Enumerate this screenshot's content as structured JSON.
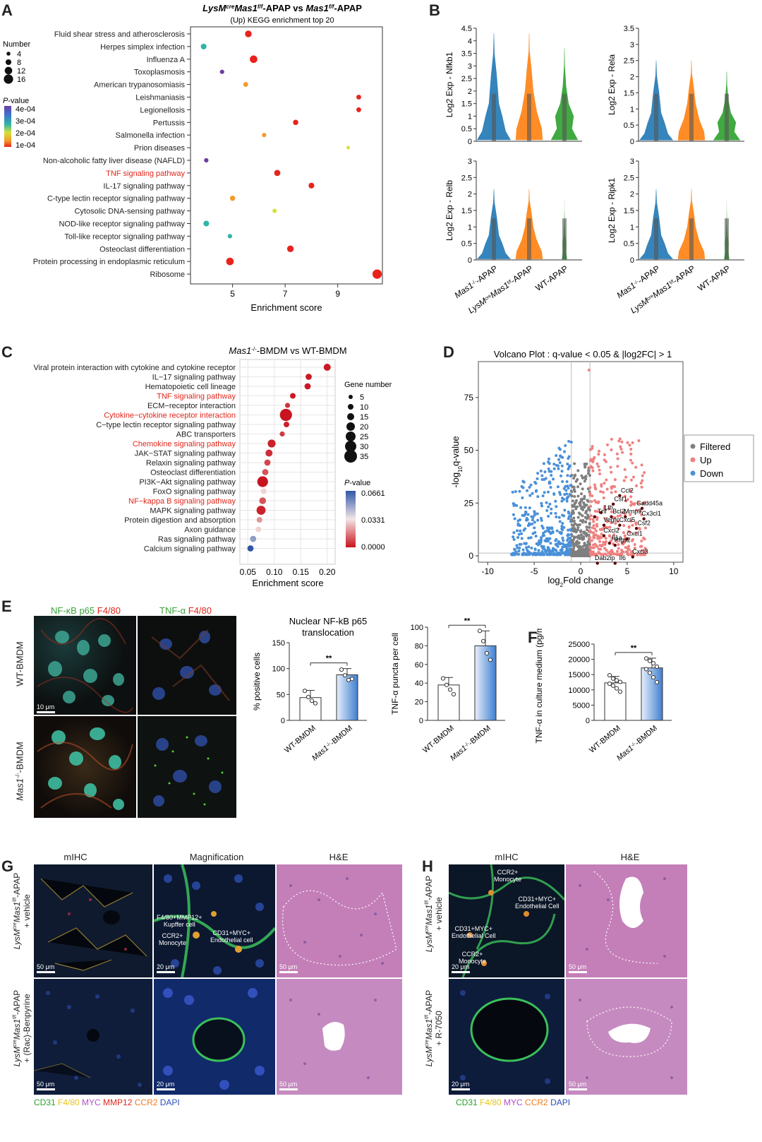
{
  "colors": {
    "violin_mas1": "#1f77b4",
    "violin_lysm": "#ff7f0e",
    "violin_wt": "#2ca02c",
    "highlight_red": "#e0261b",
    "volcano_up": "#f08080",
    "volcano_down": "#4a90d9",
    "volcano_filtered": "#7f7f7f",
    "bar_blue": "#3f7fd0"
  },
  "panels": {
    "a": {
      "letter": "A",
      "title": "LysMcreMas1f/f-APAP vs Mas1f/f-APAP",
      "title_parts": [
        "LysM",
        "cre",
        "Mas1",
        "f/f",
        "-APAP vs ",
        "Mas1",
        "f/f",
        "-APAP"
      ],
      "subtitle": "(Up) KEGG enrichment top 20",
      "legend_number_title": "Number",
      "legend_number": [
        "4",
        "8",
        "12",
        "16"
      ],
      "legend_p_title": "P-value",
      "legend_p_title_parts": [
        "P",
        "-value"
      ],
      "legend_p": [
        "4e-04",
        "3e-04",
        "2e-04",
        "1e-04"
      ]
    },
    "b": {
      "letter": "B"
    },
    "c": {
      "letter": "C",
      "title": "Mas1-/--BMDM vs WT-BMDM",
      "title_parts": [
        "Mas1",
        "-/-",
        "-BMDM vs WT-BMDM"
      ],
      "legend_gene_title": "Gene number",
      "legend_gene": [
        "5",
        "10",
        "15",
        "20",
        "25",
        "30",
        "35"
      ],
      "legend_p_title": "P-value",
      "legend_p_title_parts": [
        "P",
        "-value"
      ],
      "legend_p": [
        "0.0661",
        "0.0331",
        "0.0000"
      ]
    },
    "d": {
      "letter": "D",
      "legend": [
        "Filtered",
        "Up",
        "Down"
      ]
    },
    "e": {
      "letter": "E",
      "stain_left": [
        "NF-κB p65",
        " F4/80"
      ],
      "stain_right": [
        "TNF-α",
        " F4/80"
      ],
      "row_top": "WT-BMDM",
      "row_bottom": "Mas1-/--BMDM",
      "row_bottom_parts": [
        "Mas1",
        "-/-",
        "-BMDM"
      ],
      "scale": "10 μm"
    },
    "f": {
      "letter": "F"
    },
    "g": {
      "letter": "G",
      "col_titles": [
        "mIHC",
        "Magnification",
        "H&E"
      ],
      "row_top": [
        "LysMcreMas1f/f-APAP",
        "+ vehicle"
      ],
      "row_top_parts": [
        "LysM",
        "cre",
        "Mas1",
        "f/f",
        "-APAP"
      ],
      "row_bottom": [
        "LysMcreMas1f/f-APAP",
        "+ (Rac)-Benpyrine"
      ],
      "row_bottom_parts": [
        "LysM",
        "cre",
        "Mas1",
        "f/f",
        "-APAP"
      ],
      "callouts": [
        "F4/80+MMP12+",
        "Kupffer cell",
        "CCR2+",
        "Monocyte",
        "CD31+MYC+",
        "Endothelial cell"
      ],
      "scales": [
        "50 μm",
        "20 μm",
        "50 μm"
      ],
      "stains": [
        [
          "CD31",
          "#2ca02c"
        ],
        [
          " F4/80",
          "#e6c619"
        ],
        [
          " MYC",
          "#b54ccf"
        ],
        [
          " MMP12",
          "#e0261b"
        ],
        [
          " CCR2",
          "#f27b1d"
        ],
        [
          " DAPI",
          "#2b4fb8"
        ]
      ]
    },
    "h": {
      "letter": "H",
      "col_titles": [
        "mIHC",
        "H&E"
      ],
      "row_top": [
        "LysMcreMas1f/f-APAP",
        "+ vehicle"
      ],
      "row_top_parts": [
        "LysM",
        "cre",
        "Mas1",
        "f/f",
        "-APAP"
      ],
      "row_bottom": [
        "LysMcreMas1f/f-APAP",
        "+ R-7050"
      ],
      "row_bottom_parts": [
        "LysM",
        "cre",
        "Mas1",
        "f/f",
        "-APAP"
      ],
      "callouts": [
        "CCR2+",
        "Monocyte",
        "CD31+MYC+",
        "Endothelial Cell",
        "CD31+MYC+",
        "Endothelial Cell",
        "CCR2+",
        "Monocyte"
      ],
      "scales": [
        "20 μm",
        "50 μm"
      ],
      "stains": [
        [
          "CD31",
          "#2ca02c"
        ],
        [
          " F4/80",
          "#e6c619"
        ],
        [
          " MYC",
          "#b54ccf"
        ],
        [
          " CCR2",
          "#f27b1d"
        ],
        [
          " DAPI",
          "#2b4fb8"
        ]
      ]
    }
  },
  "chart_data": [
    {
      "id": "kegg_top20",
      "type": "scatter",
      "title": "LysMcreMas1f/f-APAP vs Mas1f/f-APAP",
      "subtitle": "(Up) KEGG enrichment top 20",
      "xlabel": "Enrichment score",
      "ylabel": "",
      "xlim": [
        3.4,
        10.7
      ],
      "xticks": [
        "5",
        "7",
        "9"
      ],
      "categories": [
        "Fluid shear stress and atherosclerosis",
        "Herpes simplex infection",
        "Influenza A",
        "Toxoplasmosis",
        "American trypanosomiasis",
        "Leishmaniasis",
        "Legionellosis",
        "Pertussis",
        "Salmonella infection",
        "Prion diseases",
        "Non-alcoholic fatty liver disease (NAFLD)",
        "TNF signaling pathway",
        "IL-17 signaling pathway",
        "C-type lectin receptor signaling pathway",
        "Cytosolic DNA-sensing pathway",
        "NOD-like receptor signaling pathway",
        "Toll-like receptor signaling pathway",
        "Osteoclast differentiation",
        "Protein processing in endoplasmic reticulum",
        "Ribosome"
      ],
      "highlight": [
        "TNF signaling pathway"
      ],
      "x": [
        5.6,
        3.9,
        5.8,
        4.6,
        5.5,
        9.8,
        9.8,
        7.4,
        6.2,
        9.4,
        4.0,
        6.7,
        8.0,
        5.0,
        6.6,
        4.0,
        4.9,
        7.2,
        4.9,
        10.5
      ],
      "number": [
        10,
        8,
        12,
        5,
        6,
        6,
        6,
        7,
        5,
        3,
        5,
        9,
        8,
        7,
        5,
        8,
        5,
        10,
        12,
        16
      ],
      "pvalue": [
        0.00012,
        0.00025,
        0.0001,
        0.00042,
        0.00015,
        0.00011,
        0.00011,
        0.0001,
        0.00016,
        0.00019,
        0.0004,
        0.0001,
        0.0001,
        0.00018,
        0.0002,
        0.00027,
        0.00026,
        0.0001,
        0.0001,
        0.0001
      ],
      "legend": "right"
    },
    {
      "id": "violins",
      "type": "violin",
      "groups": [
        "Mas1-/--APAP",
        "LysMcreMas1f/f-APAP",
        "WT-APAP"
      ],
      "panels": [
        {
          "ylabel": "Log2 Exp - Nfkb1",
          "ylim": [
            0,
            4.5
          ],
          "yticks": [
            "0",
            "0.5",
            "1",
            "1.5",
            "2",
            "2.5",
            "3",
            "3.5",
            "4",
            "4.5"
          ]
        },
        {
          "ylabel": "Log2 Exp - Rela",
          "ylim": [
            0,
            3.5
          ],
          "yticks": [
            "0",
            "0.5",
            "1",
            "1.5",
            "2",
            "2.5",
            "3",
            "3.5"
          ]
        },
        {
          "ylabel": "Log2 Exp - Relb",
          "ylim": [
            0,
            3
          ],
          "yticks": [
            "0",
            "0.5",
            "1",
            "1.5",
            "2",
            "2.5",
            "3"
          ]
        },
        {
          "ylabel": "Log2 Exp - Ripk1",
          "ylim": [
            0,
            3
          ],
          "yticks": [
            "0",
            "0.5",
            "1",
            "1.5",
            "2",
            "2.5",
            "3"
          ]
        }
      ]
    },
    {
      "id": "bmdm_kegg",
      "type": "scatter",
      "title": "Mas1-/--BMDM vs WT-BMDM",
      "xlabel": "Enrichment score",
      "xlim": [
        0.035,
        0.215
      ],
      "xticks": [
        "0.05",
        "0.10",
        "0.15",
        "0.20"
      ],
      "categories": [
        "Viral protein interaction with cytokine and cytokine receptor",
        "IL−17 signaling pathway",
        "Hematopoietic cell lineage",
        "TNF signaling pathway",
        "ECM−receptor interaction",
        "Cytokine−cytokine receptor interaction",
        "C−type lectin receptor signaling pathway",
        "ABC transporters",
        "Chemokine signaling pathway",
        "JAK−STAT signaling pathway",
        "Relaxin signaling pathway",
        "Osteoclast differentiation",
        "PI3K−Akt signaling pathway",
        "FoxO signaling pathway",
        "NF−kappa B signaling pathway",
        "MAPK signaling pathway",
        "Protein digestion and absorption",
        "Axon guidance",
        "Ras signaling pathway",
        "Calcium signaling pathway"
      ],
      "highlight": [
        "TNF signaling pathway",
        "Cytokine−cytokine receptor interaction",
        "Chemokine signaling pathway",
        "NF−kappa B signaling pathway"
      ],
      "x": [
        0.2,
        0.165,
        0.163,
        0.135,
        0.125,
        0.122,
        0.123,
        0.115,
        0.095,
        0.09,
        0.087,
        0.083,
        0.078,
        0.08,
        0.078,
        0.075,
        0.072,
        0.07,
        0.06,
        0.055
      ],
      "gene_number": [
        15,
        12,
        12,
        10,
        8,
        33,
        10,
        8,
        18,
        15,
        12,
        12,
        28,
        10,
        14,
        22,
        10,
        10,
        12,
        12
      ],
      "pvalue": [
        0.001,
        0.001,
        0.001,
        0.001,
        0.005,
        0.0,
        0.002,
        0.006,
        0.002,
        0.004,
        0.008,
        0.01,
        0.0,
        0.03,
        0.01,
        0.002,
        0.02,
        0.03,
        0.05,
        0.0661
      ],
      "legend": "right"
    },
    {
      "id": "volcano",
      "type": "scatter",
      "title": "Volcano Plot : q-value < 0.05 & |log2FC| > 1",
      "xlabel": "log2Fold change",
      "ylabel": "-log10q-value",
      "xlim": [
        -11,
        11
      ],
      "ylim": [
        -3,
        92
      ],
      "xticks": [
        "-10",
        "-5",
        "0",
        "5",
        "10"
      ],
      "yticks": [
        "0",
        "25",
        "50",
        "75"
      ],
      "thresholds": {
        "x": [
          -1,
          1
        ],
        "y": 1.3
      },
      "series": [
        {
          "name": "Filtered"
        },
        {
          "name": "Up"
        },
        {
          "name": "Down"
        }
      ],
      "labels": [
        {
          "text": "Ccl2",
          "x": 5.0,
          "y": 30
        },
        {
          "text": "Csf1",
          "x": 4.3,
          "y": 26
        },
        {
          "text": "Gadd45a",
          "x": 7.4,
          "y": 24
        },
        {
          "text": "Ltb",
          "x": 3.0,
          "y": 22
        },
        {
          "text": "Tnf",
          "x": 2.3,
          "y": 20
        },
        {
          "text": "Bcl2",
          "x": 4.1,
          "y": 20
        },
        {
          "text": "Mmp9",
          "x": 5.6,
          "y": 20
        },
        {
          "text": "Cx3cl1",
          "x": 7.6,
          "y": 19
        },
        {
          "text": "Vegfc",
          "x": 3.3,
          "y": 16
        },
        {
          "text": "Cxcl5",
          "x": 5.0,
          "y": 16
        },
        {
          "text": "Csf2",
          "x": 6.8,
          "y": 14.5
        },
        {
          "text": "Cxcl2",
          "x": 3.3,
          "y": 11
        },
        {
          "text": "Cxcl1",
          "x": 5.8,
          "y": 9.5
        },
        {
          "text": "Il1a",
          "x": 3.9,
          "y": 7.5
        },
        {
          "text": "Ptgs2",
          "x": 4.5,
          "y": 6.5
        },
        {
          "text": "Cxcl3",
          "x": 6.4,
          "y": 1
        },
        {
          "text": "Dab2ip",
          "x": 2.6,
          "y": -2
        },
        {
          "text": "Il6",
          "x": 4.5,
          "y": -2
        }
      ],
      "legend": "right"
    },
    {
      "id": "nfkb_translocation",
      "type": "bar",
      "title": "Nuclear NF-kB p65 translocation",
      "categories": [
        "WT-BMDM",
        "Mas1-/--BMDM"
      ],
      "values": [
        44,
        88
      ],
      "errors": [
        14,
        12
      ],
      "points": [
        [
          57,
          45,
          38,
          33
        ],
        [
          98,
          87,
          78,
          80
        ]
      ],
      "ylabel": "% positive cells",
      "ylim": [
        0,
        150
      ],
      "yticks": [
        "0",
        "50",
        "100",
        "150"
      ],
      "significance": "**"
    },
    {
      "id": "tnf_puncta",
      "type": "bar",
      "title": "",
      "categories": [
        "WT-BMDM",
        "Mas1-/--BMDM"
      ],
      "values": [
        38,
        80
      ],
      "errors": [
        8,
        16
      ],
      "points": [
        [
          45,
          38,
          33,
          28
        ],
        [
          96,
          85,
          72,
          65
        ]
      ],
      "ylabel": "TNF-α puncta per cell",
      "ylim": [
        0,
        100
      ],
      "yticks": [
        "0",
        "20",
        "40",
        "60",
        "80",
        "100"
      ],
      "significance": "**"
    },
    {
      "id": "tnf_medium",
      "type": "bar",
      "title": "",
      "categories": [
        "WT-BMDM",
        "Mas1-/--BMDM"
      ],
      "values": [
        12300,
        17200
      ],
      "errors": [
        2100,
        3200
      ],
      "points": [
        [
          14800,
          13700,
          13100,
          12600,
          12000,
          11400,
          10500,
          9400
        ],
        [
          20300,
          19500,
          18700,
          17600,
          16800,
          15600,
          14100,
          12500
        ]
      ],
      "ylabel": "TNF-α in culture medium (pg/ml)",
      "ylim": [
        0,
        25000
      ],
      "yticks": [
        "0",
        "5000",
        "10000",
        "15000",
        "20000",
        "25000"
      ],
      "significance": "**"
    }
  ]
}
